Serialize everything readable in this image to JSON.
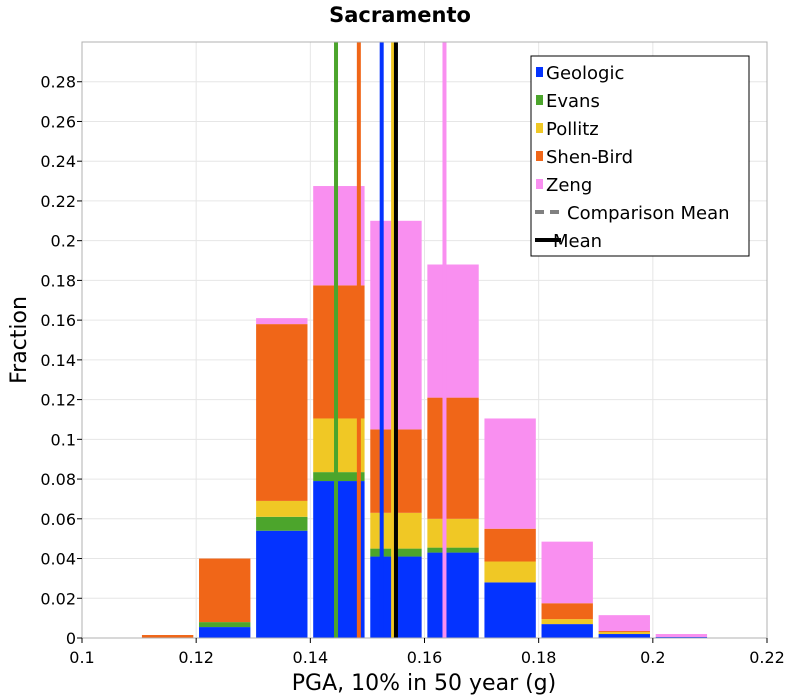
{
  "chart_data": {
    "type": "bar",
    "title": "Sacramento",
    "xlabel": "PGA, 10% in 50 year (g)",
    "ylabel": "Fraction",
    "xlim": [
      0.1,
      0.22
    ],
    "ylim": [
      0,
      0.3
    ],
    "xticks": [
      0.1,
      0.12,
      0.14,
      0.16,
      0.18,
      0.2,
      0.22
    ],
    "xtick_labels": [
      "0.1",
      "0.12",
      "0.14",
      "0.16",
      "0.18",
      "0.2",
      "0.22"
    ],
    "yticks": [
      0,
      0.02,
      0.04,
      0.06,
      0.08,
      0.1,
      0.12,
      0.14,
      0.16,
      0.18,
      0.2,
      0.22,
      0.24,
      0.26,
      0.28
    ],
    "ytick_labels": [
      "0",
      "0.02",
      "0.04",
      "0.06",
      "0.08",
      "0.1",
      "0.12",
      "0.14",
      "0.16",
      "0.18",
      "0.2",
      "0.22",
      "0.24",
      "0.26",
      "0.28"
    ],
    "stacked": true,
    "bin_width": 0.01,
    "bin_centers": [
      0.115,
      0.125,
      0.135,
      0.145,
      0.155,
      0.165,
      0.175,
      0.185,
      0.195,
      0.205
    ],
    "series": [
      {
        "name": "Geologic",
        "color": "#0433ff",
        "values": [
          0.0,
          0.0055,
          0.054,
          0.079,
          0.041,
          0.043,
          0.028,
          0.007,
          0.002,
          0.0005
        ]
      },
      {
        "name": "Evans",
        "color": "#4ca52c",
        "values": [
          0.0,
          0.0025,
          0.007,
          0.0045,
          0.004,
          0.0025,
          0.0,
          0.0,
          0.0,
          0.0
        ]
      },
      {
        "name": "Pollitz",
        "color": "#f0c825",
        "values": [
          0.0,
          0.0,
          0.008,
          0.027,
          0.018,
          0.0145,
          0.0105,
          0.0025,
          0.001,
          0.0
        ]
      },
      {
        "name": "Shen-Bird",
        "color": "#f06618",
        "values": [
          0.0015,
          0.032,
          0.089,
          0.067,
          0.042,
          0.061,
          0.0165,
          0.008,
          0.0005,
          0.0
        ]
      },
      {
        "name": "Zeng",
        "color": "#f98ff0",
        "values": [
          0.0,
          0.0,
          0.003,
          0.05,
          0.105,
          0.067,
          0.0555,
          0.031,
          0.008,
          0.0015
        ]
      }
    ],
    "vertical_lines": [
      {
        "name": "Geologic mean",
        "x": 0.1525,
        "color": "#0433ff",
        "style": "solid"
      },
      {
        "name": "Evans mean",
        "x": 0.1445,
        "color": "#4ca52c",
        "style": "solid"
      },
      {
        "name": "Pollitz mean",
        "x": 0.1545,
        "color": "#f0c825",
        "style": "solid"
      },
      {
        "name": "Shen-Bird mean",
        "x": 0.1485,
        "color": "#f06618",
        "style": "solid"
      },
      {
        "name": "Zeng mean",
        "x": 0.1635,
        "color": "#f98ff0",
        "style": "solid"
      },
      {
        "name": "Comparison Mean",
        "x": 0.155,
        "color": "#808080",
        "style": "dashed"
      },
      {
        "name": "Mean",
        "x": 0.155,
        "color": "#000000",
        "style": "solid"
      }
    ],
    "legend": {
      "position": "top-right",
      "entries": [
        {
          "label": "Geologic",
          "marker": "square",
          "color": "#0433ff"
        },
        {
          "label": "Evans",
          "marker": "square",
          "color": "#4ca52c"
        },
        {
          "label": "Pollitz",
          "marker": "square",
          "color": "#f0c825"
        },
        {
          "label": "Shen-Bird",
          "marker": "square",
          "color": "#f06618"
        },
        {
          "label": "Zeng",
          "marker": "square",
          "color": "#f98ff0"
        },
        {
          "label": "Comparison Mean",
          "marker": "dashed-line",
          "color": "#808080"
        },
        {
          "label": "Mean",
          "marker": "solid-line",
          "color": "#000000"
        }
      ]
    },
    "grid": true
  }
}
